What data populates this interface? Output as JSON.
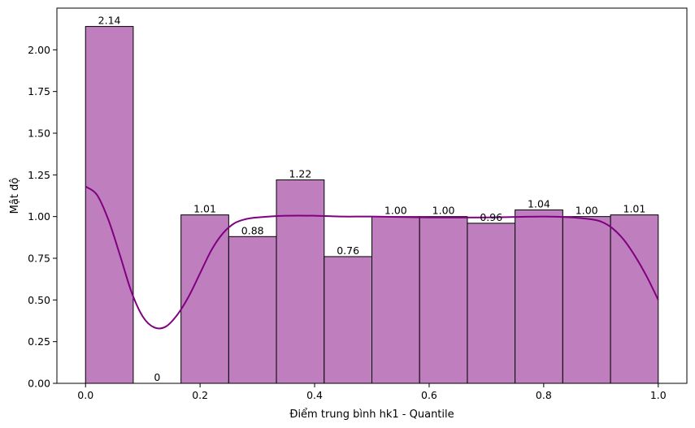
{
  "chart_data": {
    "type": "bar",
    "title": "",
    "xlabel": "Điểm trung bình hk1 - Quantile",
    "ylabel": "Mật độ",
    "xlim": [
      -0.05,
      1.05
    ],
    "ylim": [
      0,
      2.25
    ],
    "x_ticks": [
      0.0,
      0.2,
      0.4,
      0.6,
      0.8,
      1.0
    ],
    "x_tick_labels": [
      "0.0",
      "0.2",
      "0.4",
      "0.6",
      "0.8",
      "1.0"
    ],
    "y_ticks": [
      0,
      0.25,
      0.5,
      0.75,
      1.0,
      1.25,
      1.5,
      1.75,
      2.0
    ],
    "y_tick_labels": [
      "0.00",
      "0.25",
      "0.50",
      "0.75",
      "1.00",
      "1.25",
      "1.50",
      "1.75",
      "2.00"
    ],
    "bin_edges": [
      0.0,
      0.0833,
      0.1667,
      0.25,
      0.3333,
      0.4167,
      0.5,
      0.5833,
      0.6667,
      0.75,
      0.8333,
      0.9167,
      1.0
    ],
    "values": [
      2.14,
      0,
      1.01,
      0.88,
      1.22,
      0.76,
      1.0,
      1.0,
      0.96,
      1.04,
      1.0,
      1.01
    ],
    "bar_labels": [
      "2.14",
      "0",
      "1.01",
      "0.88",
      "1.22",
      "0.76",
      "1.00",
      "1.00",
      "0.96",
      "1.04",
      "1.00",
      "1.01"
    ],
    "bar_color": "#bf7fbf",
    "kde": {
      "color": "#800080",
      "x": [
        0.0,
        0.02,
        0.04,
        0.06,
        0.08,
        0.1,
        0.12,
        0.14,
        0.16,
        0.18,
        0.2,
        0.22,
        0.24,
        0.26,
        0.28,
        0.3,
        0.35,
        0.4,
        0.45,
        0.5,
        0.6,
        0.7,
        0.8,
        0.85,
        0.88,
        0.9,
        0.92,
        0.94,
        0.96,
        0.98,
        1.0
      ],
      "y": [
        1.18,
        1.13,
        0.98,
        0.77,
        0.55,
        0.4,
        0.335,
        0.34,
        0.41,
        0.52,
        0.66,
        0.8,
        0.9,
        0.96,
        0.985,
        0.995,
        1.005,
        1.005,
        1.0,
        1.0,
        0.995,
        0.995,
        1.0,
        0.995,
        0.985,
        0.97,
        0.93,
        0.86,
        0.76,
        0.64,
        0.5
      ]
    },
    "grid": false,
    "legend": "none"
  }
}
